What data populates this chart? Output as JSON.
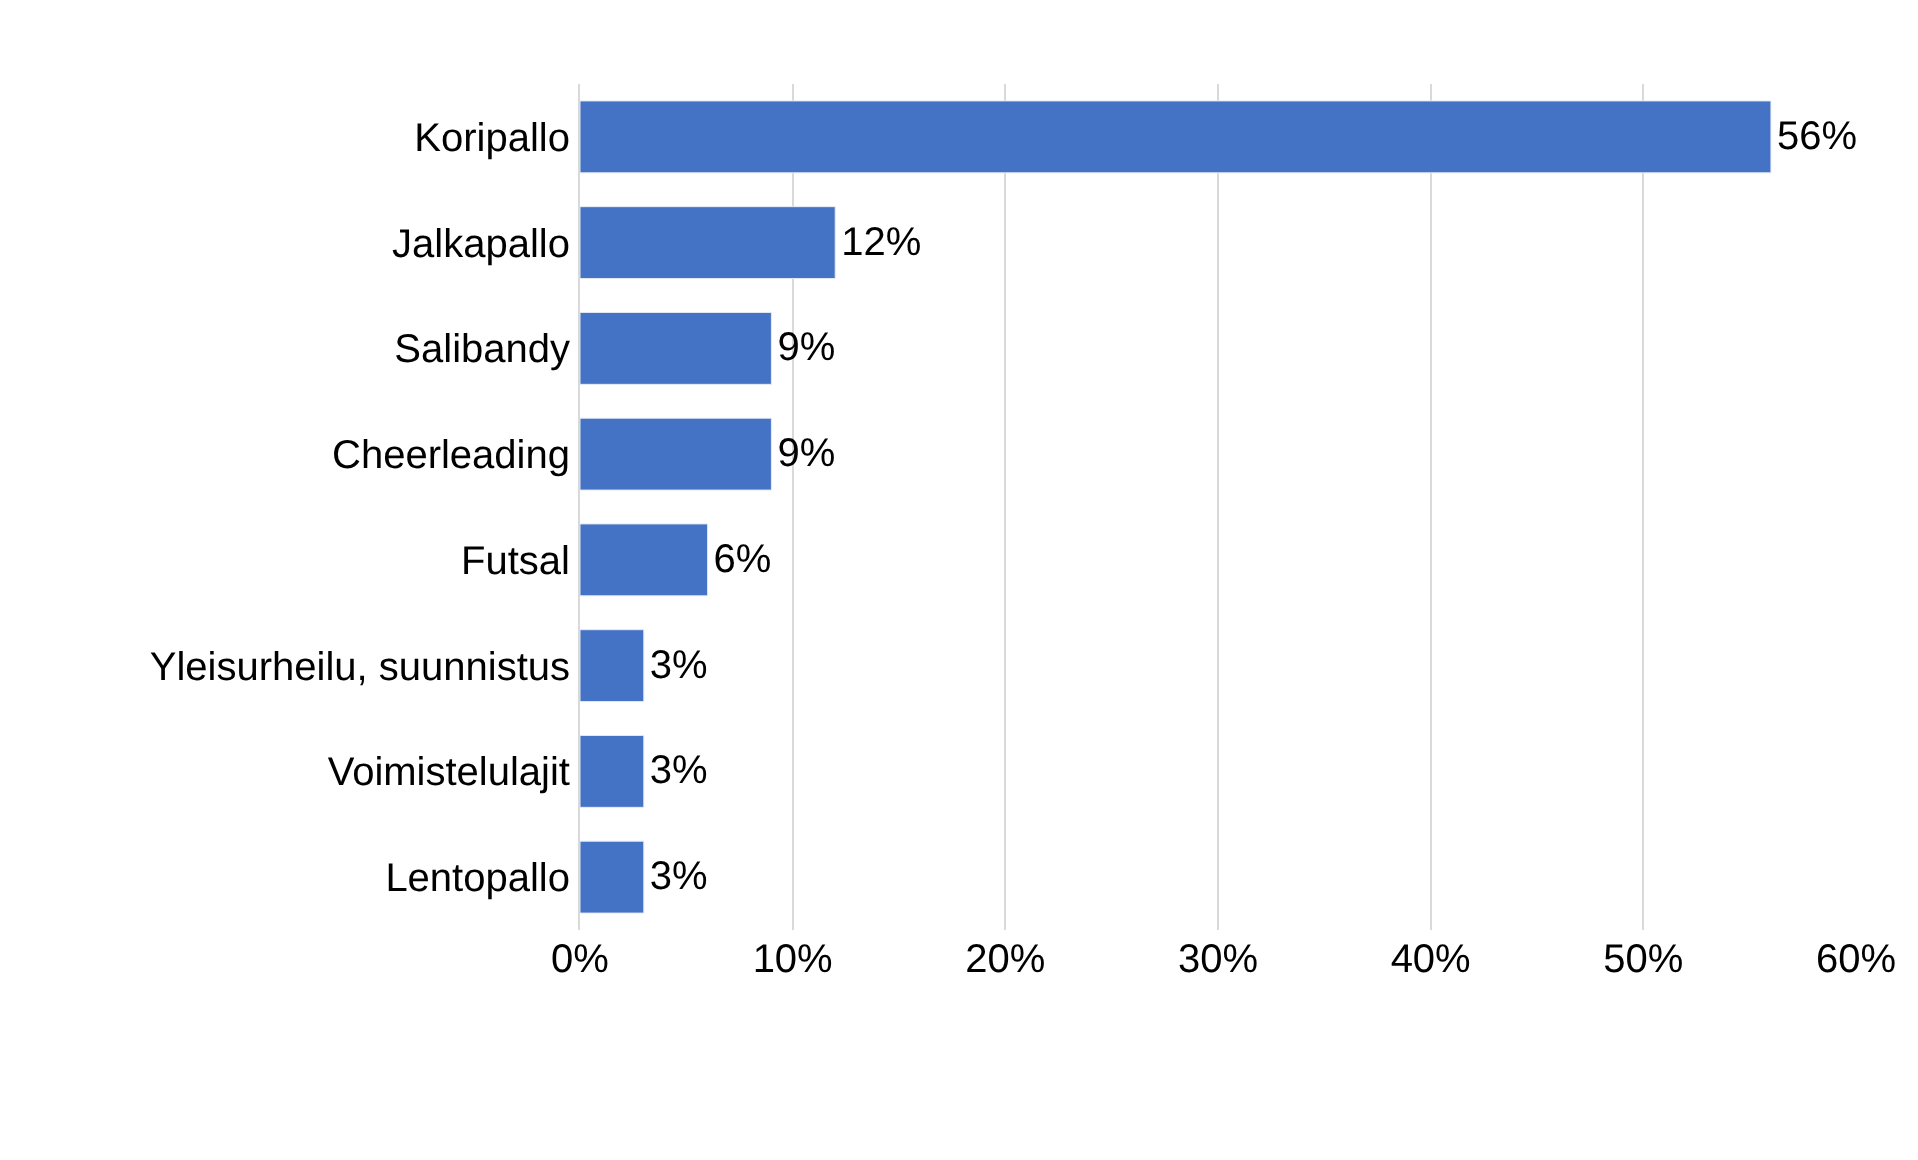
{
  "chart_data": {
    "type": "bar",
    "orientation": "horizontal",
    "categories": [
      "Koripallo",
      "Jalkapallo",
      "Salibandy",
      "Cheerleading",
      "Futsal",
      "Yleisurheilu, suunnistus",
      "Voimistelulajit",
      "Lentopallo"
    ],
    "values": [
      56,
      12,
      9,
      9,
      6,
      3,
      3,
      3
    ],
    "value_labels": [
      "56%",
      "12%",
      "9%",
      "9%",
      "6%",
      "3%",
      "3%",
      "3%"
    ],
    "color": "#4472c4",
    "xlim": [
      0,
      60
    ],
    "xticks": [
      {
        "value": 0,
        "label": "0%"
      },
      {
        "value": 10,
        "label": "10%"
      },
      {
        "value": 20,
        "label": "20%"
      },
      {
        "value": 30,
        "label": "30%"
      },
      {
        "value": 40,
        "label": "40%"
      },
      {
        "value": 50,
        "label": "50%"
      },
      {
        "value": 60,
        "label": "60%"
      }
    ],
    "grid": "x",
    "legend": false
  }
}
